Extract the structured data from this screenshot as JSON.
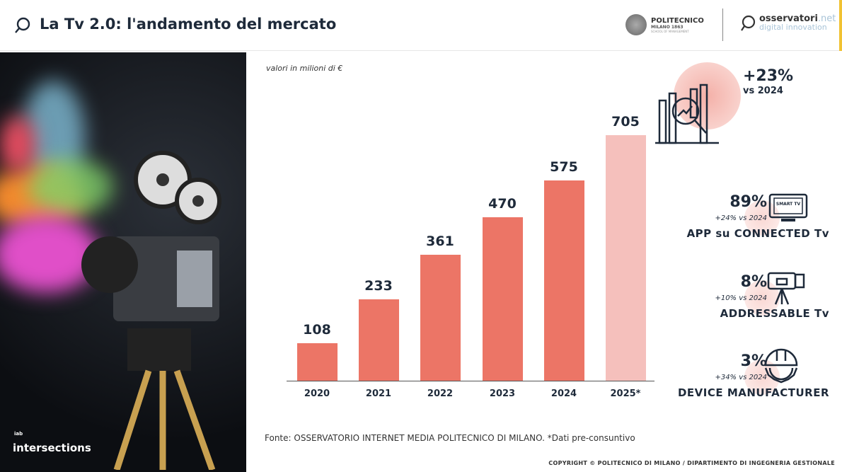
{
  "header": {
    "title": "La Tv 2.0: l'andamento del mercato",
    "politecnico": {
      "name": "POLITECNICO",
      "sub": "MILANO 1863",
      "school": "SCHOOL OF MANAGEMENT"
    },
    "osservatori": {
      "name": "osservatori",
      "tld": ".net",
      "tagline": "digital innovation"
    }
  },
  "photo": {
    "brand": "intersections",
    "partner": "iab"
  },
  "subtitle": "valori in milioni di €",
  "chart_data": {
    "type": "bar",
    "title": "",
    "ylabel": "valori in milioni di €",
    "xlabel": "",
    "categories": [
      "2020",
      "2021",
      "2022",
      "2023",
      "2024",
      "2025*"
    ],
    "values": [
      108,
      233,
      361,
      470,
      575,
      705
    ],
    "ylim": [
      0,
      705
    ],
    "colors": {
      "actual": "#ec7566",
      "estimate": "#f5c0bc"
    }
  },
  "growth": {
    "value": "+23%",
    "label": "vs 2024"
  },
  "kpis": [
    {
      "pct": "89%",
      "delta": "+24% vs 2024",
      "label": "APP su CONNECTED Tv",
      "icon": "smart-tv-icon",
      "icon_text": "SMART TV"
    },
    {
      "pct": "8%",
      "delta": "+10% vs 2024",
      "label": "ADDRESSABLE Tv",
      "icon": "video-camera-icon"
    },
    {
      "pct": "3%",
      "delta": "+34% vs 2024",
      "label": "DEVICE MANUFACTURER",
      "icon": "hardhat-gear-icon"
    }
  ],
  "source": "Fonte:  OSSERVATORIO INTERNET MEDIA POLITECNICO DI MILANO. *Dati pre-consuntivo",
  "copyright": "COPYRIGHT © POLITECNICO DI MILANO / DIPARTIMENTO DI INGEGNERIA GESTIONALE"
}
